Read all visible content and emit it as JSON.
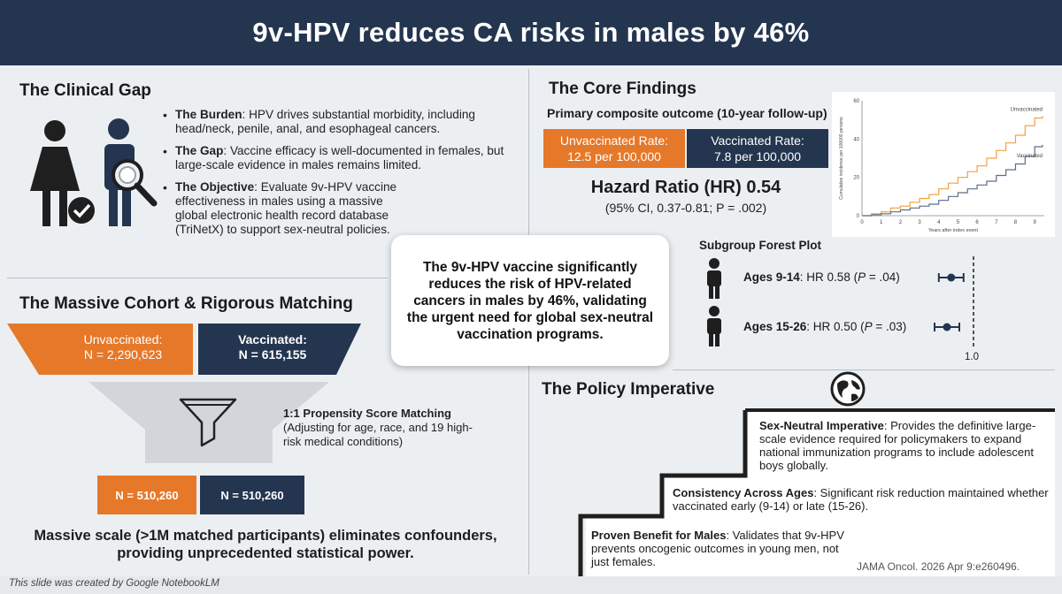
{
  "title": "9v-HPV reduces CA risks in males by 46%",
  "clinical_gap": {
    "heading": "The Clinical Gap",
    "items": [
      {
        "label": "The Burden",
        "text": ": HPV drives substantial morbidity, including head/neck, penile, anal, and esophageal cancers."
      },
      {
        "label": "The Gap",
        "text": ": Vaccine efficacy is well-documented in females, but large-scale evidence in males remains limited."
      },
      {
        "label": "The Objective",
        "text": ": Evaluate 9v-HPV vaccine effectiveness in males using a massive global electronic health record database (TriNetX) to support sex-neutral policies."
      }
    ]
  },
  "cohort": {
    "heading": "The Massive Cohort & Rigorous Matching",
    "unvaccinated_label": "Unvaccinated:",
    "unvaccinated_n": "N = 2,290,623",
    "vaccinated_label": "Vaccinated:",
    "vaccinated_n": "N = 615,155",
    "matching_title": "1:1 Propensity Score Matching",
    "matching_detail": "(Adjusting for age, race, and 19 high-risk medical conditions)",
    "matched_unvaccinated": "N = 510,260",
    "matched_vaccinated": "N = 510,260",
    "summary": "Massive scale (>1M matched participants) eliminates confounders, providing unprecedented statistical power."
  },
  "callout": "The 9v-HPV vaccine significantly reduces the risk of HPV-related cancers in males by 46%, validating the urgent need for global sex-neutral vaccination programs.",
  "core_findings": {
    "heading": "The Core Findings",
    "subheading": "Primary composite outcome (10-year follow-up)",
    "unvaccinated_rate_label": "Unvaccinated Rate:",
    "unvaccinated_rate_value": "12.5 per 100,000",
    "vaccinated_rate_label": "Vaccinated Rate:",
    "vaccinated_rate_value": "7.8 per 100,000",
    "hazard_ratio": "Hazard Ratio (HR) 0.54",
    "ci": "(95% CI, 0.37-0.81; P = .002)"
  },
  "chart_data": {
    "type": "line",
    "xlabel": "Years after index event",
    "ylabel": "Cumulative incidence per 100000 persons",
    "xlim": [
      0,
      9.5
    ],
    "ylim": [
      0,
      60
    ],
    "x_ticks": [
      "0",
      "1",
      "2",
      "3",
      "4",
      "5",
      "6",
      "7",
      "8",
      "9"
    ],
    "y_ticks": [
      "0",
      "20",
      "40",
      "60"
    ],
    "series": [
      {
        "name": "Unvaccinated",
        "color": "#f0a040",
        "x": [
          0,
          0.5,
          1,
          1.5,
          2,
          2.5,
          3,
          3.5,
          4,
          4.5,
          5,
          5.5,
          6,
          6.5,
          7,
          7.5,
          8,
          8.5,
          9,
          9.4
        ],
        "y": [
          0,
          1,
          2,
          4,
          5,
          7,
          9,
          11,
          14,
          17,
          20,
          23,
          26,
          30,
          34,
          38,
          42,
          47,
          51,
          52
        ]
      },
      {
        "name": "Vaccinated",
        "color": "#5a6f86",
        "x": [
          0,
          0.5,
          1,
          1.5,
          2,
          2.5,
          3,
          3.5,
          4,
          4.5,
          5,
          5.5,
          6,
          6.5,
          7,
          7.5,
          8,
          8.5,
          9,
          9.4
        ],
        "y": [
          0,
          0.5,
          1,
          2,
          3,
          4,
          5,
          6,
          8,
          10,
          12,
          14,
          16,
          18,
          21,
          24,
          27,
          31,
          36,
          37
        ]
      }
    ]
  },
  "forest": {
    "heading": "Subgroup Forest Plot",
    "rows": [
      {
        "label": "Ages 9-14",
        "text": ": HR 0.58 (",
        "p": "P",
        "p_rest": " = .04)",
        "hr": 0.58
      },
      {
        "label": "Ages 15-26",
        "text": ": HR 0.50 (",
        "p": "P",
        "p_rest": " = .03)",
        "hr": 0.5
      }
    ],
    "ref_label": "1.0"
  },
  "policy": {
    "heading": "The Policy Imperative",
    "items": [
      {
        "label": "Sex-Neutral Imperative",
        "text": ": Provides the definitive large-scale evidence required for policymakers to expand national immunization programs to include adolescent boys globally."
      },
      {
        "label": "Consistency Across Ages",
        "text": ": Significant risk reduction maintained whether vaccinated early (9-14) or late (15-26)."
      },
      {
        "label": "Proven Benefit for Males",
        "text": ": Validates that 9v-HPV prevents oncogenic outcomes in young men, not just females."
      }
    ]
  },
  "citation": "JAMA Oncol. 2026 Apr 9:e260496.",
  "footer_note": "This slide was created by Google NotebookLM"
}
